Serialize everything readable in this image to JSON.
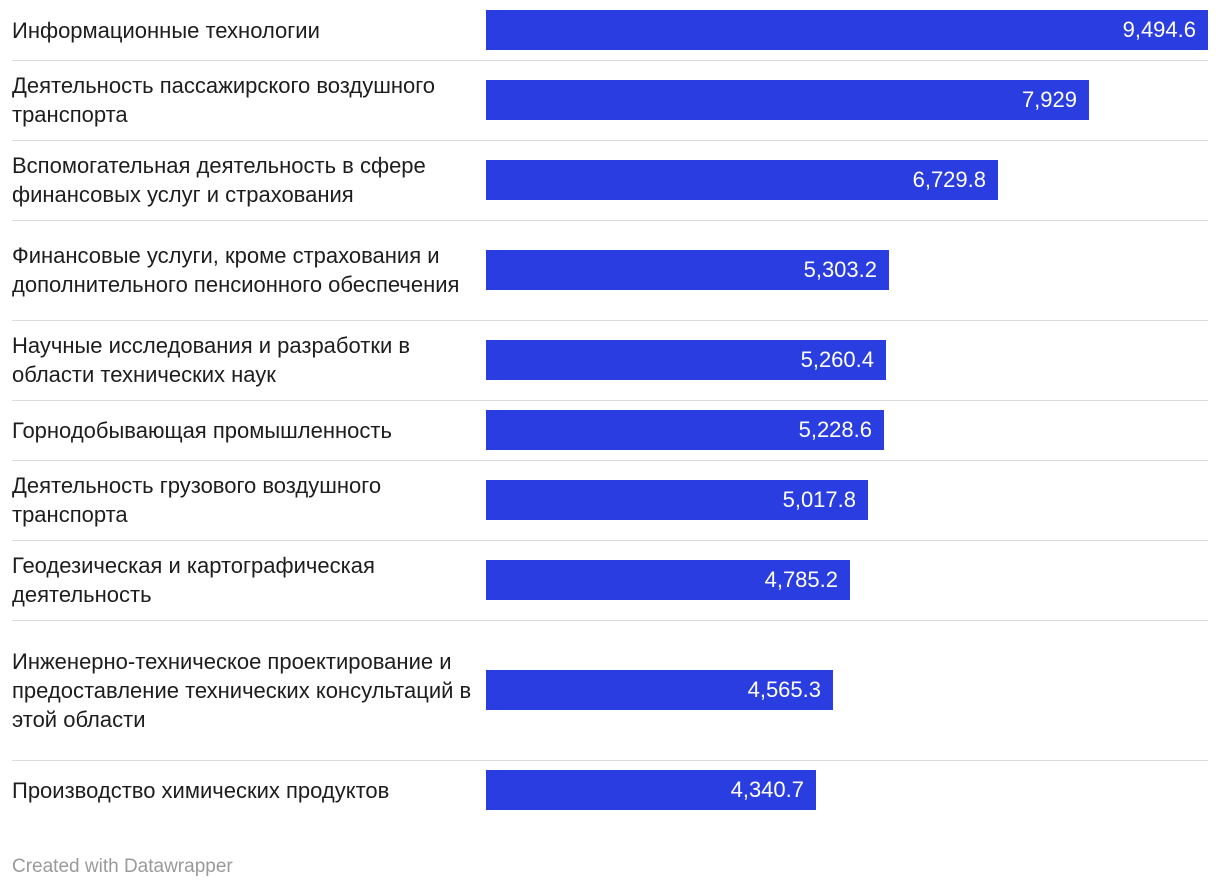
{
  "chart_data": {
    "type": "bar",
    "orientation": "horizontal",
    "categories": [
      "Информационные технологии",
      "Деятельность пассажирского воздушного транспорта",
      "Вспомогательная деятельность в сфере финансовых услуг и страхования",
      "Финансовые услуги, кроме страхования и дополнительного пенсионного обеспечения",
      "Научные исследования и разработки в области технических наук",
      "Горнодобывающая промышленность",
      "Деятельность грузового воздушного транспорта",
      "Геодезическая и картографическая деятельность",
      "Инженерно-техническое проектирование и предоставление технических консультаций в этой области",
      "Производство химических продуктов"
    ],
    "values": [
      9494.6,
      7929,
      6729.8,
      5303.2,
      5260.4,
      5228.6,
      5017.8,
      4785.2,
      4565.3,
      4340.7
    ],
    "value_labels": [
      "9,494.6",
      "7,929",
      "6,729.8",
      "5,303.2",
      "5,260.4",
      "5,228.6",
      "5,017.8",
      "4,785.2",
      "4,565.3",
      "4,340.7"
    ],
    "bar_color": "#2a3de0",
    "title": "",
    "xlabel": "",
    "ylabel": "",
    "grid": false
  },
  "credit": "Created with Datawrapper"
}
